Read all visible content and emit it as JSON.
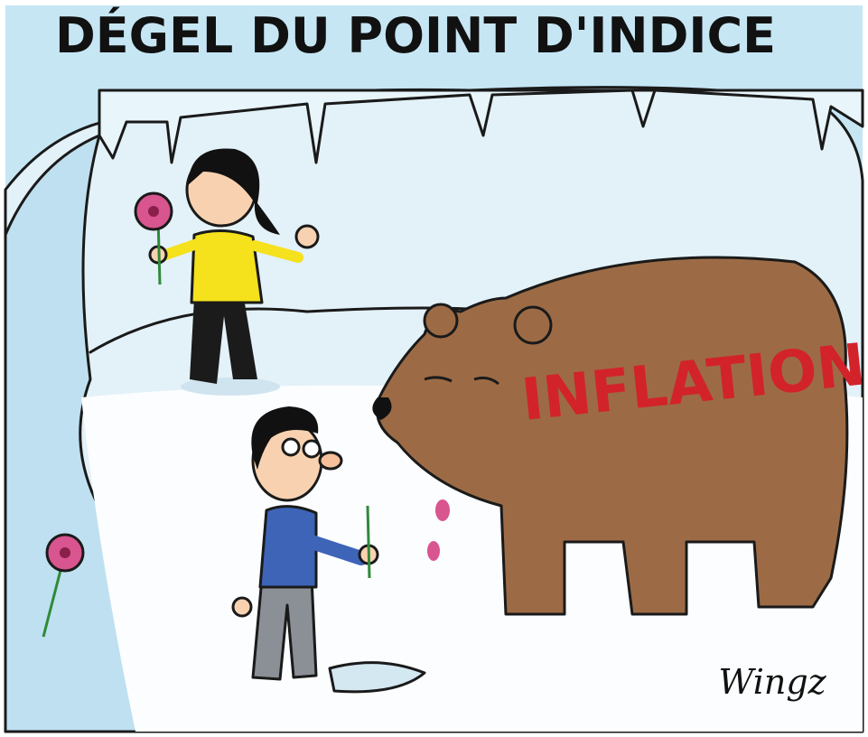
{
  "title": "DÉGEL DU POINT D'INDICE",
  "bear_label": "INFLATION",
  "signature": "Wingz"
}
